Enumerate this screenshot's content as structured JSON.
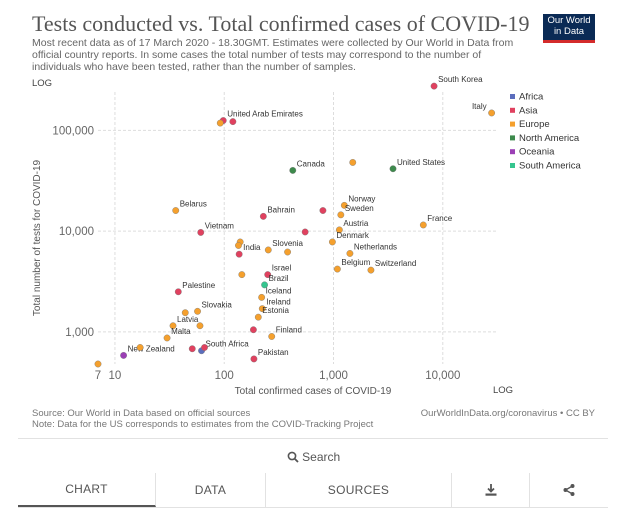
{
  "header": {
    "title": "Tests conducted vs. Total confirmed cases of COVID-19",
    "subtitle": "Most recent data as of 17 March 2020 - 18.30GMT. Estimates were collected by Our World in Data from official country reports. In some cases the total number of tests may correspond to the number of individuals who have been tested, rather than the number of samples.",
    "logo_line1": "Our World",
    "logo_line2": "in Data"
  },
  "colors": {
    "Africa": "#5b6dbd",
    "Asia": "#e0415f",
    "Europe": "#f5a02d",
    "North America": "#3d8a4c",
    "Oceania": "#9b3fb5",
    "South America": "#35c58f"
  },
  "chart_data": {
    "type": "scatter",
    "xlabel": "Total confirmed cases of COVID-19",
    "ylabel": "Total number of tests for COVID-19",
    "x_scale": "log",
    "y_scale": "log",
    "xlim": [
      7,
      32000
    ],
    "ylim": [
      480,
      240000
    ],
    "x_ticks": [
      {
        "value": 7,
        "label": "7"
      },
      {
        "value": 10,
        "label": "10"
      },
      {
        "value": 100,
        "label": "100"
      },
      {
        "value": 1000,
        "label": "1,000"
      },
      {
        "value": 10000,
        "label": "10,000"
      }
    ],
    "y_ticks": [
      {
        "value": 1000,
        "label": "1,000"
      },
      {
        "value": 10000,
        "label": "10,000"
      },
      {
        "value": 100000,
        "label": "100,000"
      }
    ],
    "x_scale_label": "LOG",
    "y_scale_label": "LOG",
    "legend": [
      "Africa",
      "Asia",
      "Europe",
      "North America",
      "Oceania",
      "South America"
    ],
    "points": [
      {
        "name": "South Korea",
        "x": 8320,
        "y": 274504,
        "region": "Asia",
        "label": true
      },
      {
        "name": "Italy",
        "x": 27980,
        "y": 148657,
        "region": "Europe",
        "label": true
      },
      {
        "name": "United Arab Emirates",
        "x": 98,
        "y": 125000,
        "region": "Asia",
        "label": true
      },
      {
        "name": "Canada",
        "x": 424,
        "y": 40000,
        "region": "North America",
        "label": true
      },
      {
        "name": "United States",
        "x": 3503,
        "y": 41552,
        "region": "North America",
        "label": true
      },
      {
        "name": "Belarus",
        "x": 36,
        "y": 16000,
        "region": "Europe",
        "label": true
      },
      {
        "name": "Bahrain",
        "x": 228,
        "y": 14000,
        "region": "Asia",
        "label": true
      },
      {
        "name": "Norway",
        "x": 1256,
        "y": 18000,
        "region": "Europe",
        "label": true
      },
      {
        "name": "Sweden",
        "x": 1167,
        "y": 14500,
        "region": "Europe",
        "label": true
      },
      {
        "name": "Vietnam",
        "x": 61,
        "y": 9700,
        "region": "Asia",
        "label": true
      },
      {
        "name": "France",
        "x": 6633,
        "y": 11500,
        "region": "Europe",
        "label": true
      },
      {
        "name": "Austria",
        "x": 1132,
        "y": 10278,
        "region": "Europe",
        "label": true
      },
      {
        "name": "India",
        "x": 137,
        "y": 5900,
        "region": "Asia",
        "label": true
      },
      {
        "name": "Slovenia",
        "x": 253,
        "y": 6500,
        "region": "Europe",
        "label": true
      },
      {
        "name": "Denmark",
        "x": 977,
        "y": 7800,
        "region": "Europe",
        "label": true
      },
      {
        "name": "Netherlands",
        "x": 1413,
        "y": 6000,
        "region": "Europe",
        "label": true
      },
      {
        "name": "Israel",
        "x": 250,
        "y": 3700,
        "region": "Asia",
        "label": true
      },
      {
        "name": "Belgium",
        "x": 1085,
        "y": 4200,
        "region": "Europe",
        "label": true
      },
      {
        "name": "Switzerland",
        "x": 2200,
        "y": 4100,
        "region": "Europe",
        "label": true
      },
      {
        "name": "Brazil",
        "x": 234,
        "y": 2927,
        "region": "South America",
        "label": true
      },
      {
        "name": "Palestine",
        "x": 38,
        "y": 2500,
        "region": "Asia",
        "label": true
      },
      {
        "name": "Iceland",
        "x": 220,
        "y": 2200,
        "region": "Europe",
        "label": true
      },
      {
        "name": "Ireland",
        "x": 223,
        "y": 1700,
        "region": "Europe",
        "label": true
      },
      {
        "name": "Slovakia",
        "x": 57,
        "y": 1600,
        "region": "Europe",
        "label": true
      },
      {
        "name": "Estonia",
        "x": 205,
        "y": 1400,
        "region": "Europe",
        "label": true
      },
      {
        "name": "Latvia",
        "x": 34,
        "y": 1150,
        "region": "Europe",
        "label": true
      },
      {
        "name": "Finland",
        "x": 272,
        "y": 900,
        "region": "Europe",
        "label": true
      },
      {
        "name": "Malta",
        "x": 30,
        "y": 870,
        "region": "Europe",
        "label": true
      },
      {
        "name": "South Africa",
        "x": 62,
        "y": 650,
        "region": "Africa",
        "label": true
      },
      {
        "name": "New Zealand",
        "x": 12,
        "y": 584,
        "region": "Oceania",
        "label": true
      },
      {
        "name": "Pakistan",
        "x": 187,
        "y": 539,
        "region": "Asia",
        "label": true
      },
      {
        "name": "Unlabeled",
        "x": 92,
        "y": 118000,
        "region": "Europe",
        "label": false
      },
      {
        "name": "Unlabeled",
        "x": 120,
        "y": 122000,
        "region": "Asia",
        "label": false
      },
      {
        "name": "Unlabeled",
        "x": 1500,
        "y": 48000,
        "region": "Europe",
        "label": false
      },
      {
        "name": "Unlabeled",
        "x": 800,
        "y": 16000,
        "region": "Asia",
        "label": false
      },
      {
        "name": "Unlabeled",
        "x": 550,
        "y": 9800,
        "region": "Asia",
        "label": false
      },
      {
        "name": "Unlabeled",
        "x": 140,
        "y": 7800,
        "region": "Europe",
        "label": false
      },
      {
        "name": "Unlabeled",
        "x": 135,
        "y": 7200,
        "region": "Europe",
        "label": false
      },
      {
        "name": "Unlabeled",
        "x": 380,
        "y": 6200,
        "region": "Europe",
        "label": false
      },
      {
        "name": "Unlabeled",
        "x": 145,
        "y": 3700,
        "region": "Europe",
        "label": false
      },
      {
        "name": "Unlabeled",
        "x": 44,
        "y": 1550,
        "region": "Europe",
        "label": false
      },
      {
        "name": "Unlabeled",
        "x": 60,
        "y": 1150,
        "region": "Europe",
        "label": false
      },
      {
        "name": "Unlabeled",
        "x": 185,
        "y": 1050,
        "region": "Asia",
        "label": false
      },
      {
        "name": "Unlabeled",
        "x": 17,
        "y": 700,
        "region": "Europe",
        "label": false
      },
      {
        "name": "Unlabeled",
        "x": 7,
        "y": 480,
        "region": "Europe",
        "label": false
      },
      {
        "name": "Unlabeled",
        "x": 51,
        "y": 680,
        "region": "Asia",
        "label": false
      },
      {
        "name": "Unlabeled",
        "x": 66,
        "y": 700,
        "region": "Asia",
        "label": false
      }
    ]
  },
  "footer": {
    "source": "Source: Our World in Data based on official sources",
    "note": "Note: Data for the US corresponds to estimates from the COVID-Tracking Project",
    "credit": "OurWorldInData.org/coronavirus • CC BY"
  },
  "search_label": "Search",
  "tabs": [
    "CHART",
    "DATA",
    "SOURCES"
  ],
  "icons": {
    "download": "download-icon",
    "share": "share-icon",
    "search": "search-icon"
  }
}
